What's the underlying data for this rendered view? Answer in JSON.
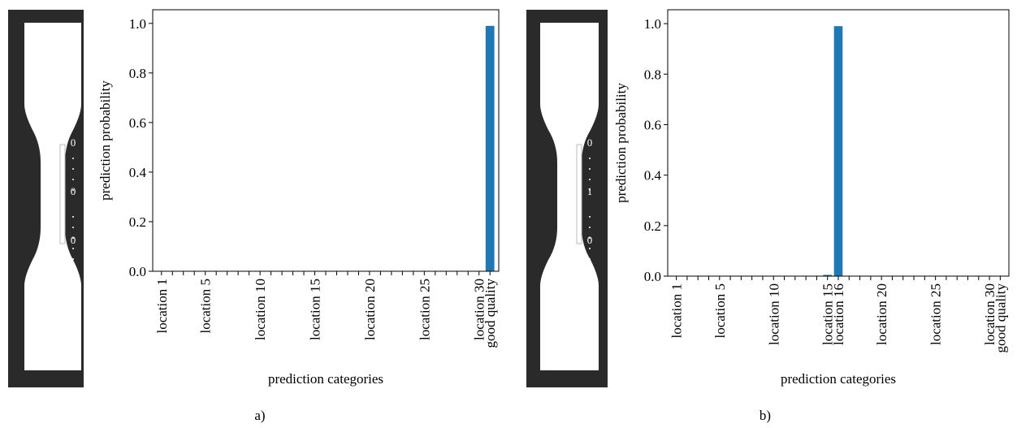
{
  "chart_data": [
    {
      "type": "bar",
      "caption": "a)",
      "specimen_labels": [
        "0",
        "0",
        "0"
      ],
      "xlabel": "prediction categories",
      "ylabel": "prediction probability",
      "categories": [
        "location 1",
        null,
        null,
        null,
        "location 5",
        null,
        null,
        null,
        null,
        "location 10",
        null,
        null,
        null,
        null,
        "location 15",
        null,
        null,
        null,
        null,
        "location 20",
        null,
        null,
        null,
        null,
        "location 25",
        null,
        null,
        null,
        null,
        "location 30",
        "good quality"
      ],
      "values": [
        0,
        0,
        0,
        0,
        0,
        0,
        0,
        0,
        0,
        0,
        0,
        0,
        0,
        0,
        0,
        0,
        0,
        0,
        0,
        0,
        0,
        0,
        0,
        0,
        0,
        0,
        0,
        0,
        0,
        0,
        0.99
      ],
      "color": "#1f77b4",
      "ylim": [
        0,
        1.055
      ],
      "yticks": [
        {
          "value": 0,
          "label": "0.0"
        },
        0.2,
        0.4,
        0.6,
        0.8,
        {
          "value": 1,
          "label": "1.0"
        }
      ]
    },
    {
      "type": "bar",
      "caption": "b)",
      "specimen_labels": [
        "0",
        "1",
        "0"
      ],
      "xlabel": "prediction categories",
      "ylabel": "prediction probability",
      "categories": [
        "location 1",
        null,
        null,
        null,
        "location 5",
        null,
        null,
        null,
        null,
        "location 10",
        null,
        null,
        null,
        null,
        "location 15",
        "location 16",
        null,
        null,
        null,
        "location 20",
        null,
        null,
        null,
        null,
        "location 25",
        null,
        null,
        null,
        null,
        "location 30",
        "good quality"
      ],
      "values": [
        0,
        0,
        0,
        0,
        0,
        0,
        0,
        0,
        0,
        0,
        0,
        0,
        0,
        0,
        0.005,
        0.99,
        0,
        0,
        0,
        0,
        0,
        0,
        0,
        0,
        0,
        0,
        0,
        0,
        0,
        0,
        0
      ],
      "color": "#1f77b4",
      "ylim": [
        0,
        1.055
      ],
      "yticks": [
        {
          "value": 0,
          "label": "0.0"
        },
        0.2,
        0.4,
        0.6,
        0.8,
        {
          "value": 1,
          "label": "1.0"
        }
      ]
    }
  ]
}
